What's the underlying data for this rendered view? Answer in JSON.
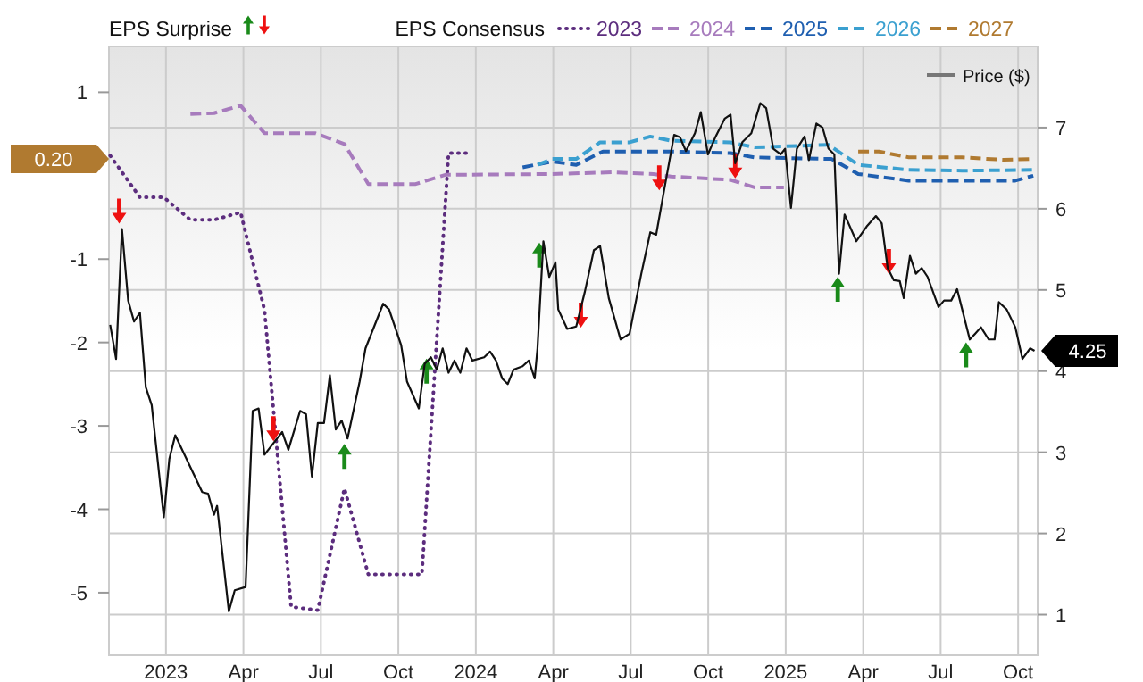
{
  "chart_data": {
    "type": "line",
    "legend_title": "EPS Consensus",
    "annotations": [
      "EPS Surprise",
      "0.20",
      "4.25"
    ],
    "xlim": [
      2022.816,
      2025.813
    ],
    "xticks": [
      2023,
      {
        "value": 2023.25,
        "label": "Apr"
      },
      {
        "value": 2023.5,
        "label": "Jul"
      },
      {
        "value": 2023.75,
        "label": "Oct"
      },
      2024,
      {
        "value": 2024.25,
        "label": "Apr"
      },
      {
        "value": 2024.5,
        "label": "Jul"
      },
      {
        "value": 2024.75,
        "label": "Oct"
      },
      2025,
      {
        "value": 2025.25,
        "label": "Apr"
      },
      {
        "value": 2025.5,
        "label": "Jul"
      },
      {
        "value": 2025.75,
        "label": "Oct"
      }
    ],
    "ylim": [
      -5.75,
      1.55
    ],
    "yticks": [
      1,
      -1,
      -2,
      -3,
      -4,
      -5
    ],
    "y2lim": [
      0.5,
      8.0
    ],
    "y2ticks": [
      1,
      2,
      3,
      4,
      5,
      6,
      7
    ],
    "grid": true,
    "legend": "top",
    "series": [
      {
        "name": "2023",
        "color": "#5c2d7e",
        "line_style": "dotted",
        "x": [
          2022.82,
          2022.916,
          2022.993,
          2023.079,
          2023.155,
          2023.241,
          2023.318,
          2023.404,
          2023.49,
          2023.576,
          2023.653,
          2023.826,
          2023.912,
          2023.979
        ],
        "values": [
          0.24,
          -0.26,
          -0.26,
          -0.53,
          -0.53,
          -0.44,
          -1.61,
          -5.17,
          -5.21,
          -3.75,
          -4.78,
          -4.78,
          0.27,
          0.27
        ]
      },
      {
        "name": "2024",
        "color": "#a77bbd",
        "line_style": "dashed",
        "x": [
          2023.079,
          2023.155,
          2023.241,
          2023.318,
          2023.481,
          2023.576,
          2023.653,
          2023.806,
          2023.902,
          2024.247,
          2024.439,
          2024.573,
          2024.63,
          2024.822,
          2024.899,
          2024.994
        ],
        "values": [
          0.74,
          0.75,
          0.84,
          0.51,
          0.51,
          0.38,
          -0.1,
          -0.1,
          0.01,
          0.02,
          0.04,
          0.02,
          -0.01,
          -0.05,
          -0.14,
          -0.14
        ]
      },
      {
        "name": "2025",
        "color": "#1f5fb0",
        "line_style": "dashed",
        "x": [
          2024.151,
          2024.247,
          2024.324,
          2024.41,
          2024.63,
          2024.822,
          2024.899,
          2025.148,
          2025.234,
          2025.397,
          2025.741,
          2025.799
        ],
        "values": [
          0.1,
          0.17,
          0.13,
          0.29,
          0.29,
          0.27,
          0.22,
          0.2,
          0.02,
          -0.06,
          -0.06,
          0.0
        ]
      },
      {
        "name": "2026",
        "color": "#3ba0d0",
        "line_style": "dashed",
        "x": [
          2024.199,
          2024.247,
          2024.324,
          2024.401,
          2024.496,
          2024.563,
          2024.63,
          2024.822,
          2024.899,
          2025.138,
          2025.234,
          2025.397,
          2025.569,
          2025.799
        ],
        "values": [
          0.13,
          0.2,
          0.2,
          0.4,
          0.4,
          0.47,
          0.42,
          0.4,
          0.34,
          0.37,
          0.13,
          0.07,
          0.06,
          0.07
        ]
      },
      {
        "name": "2027",
        "color": "#b07a30",
        "line_style": "dashed",
        "x": [
          2025.234,
          2025.301,
          2025.397,
          2025.569,
          2025.703,
          2025.799
        ],
        "values": [
          0.29,
          0.29,
          0.22,
          0.22,
          0.19,
          0.2
        ]
      },
      {
        "name": "Price ($)",
        "color": "#111111",
        "axis": "y2",
        "line_style": "solid",
        "x": [
          2022.82,
          2022.839,
          2022.858,
          2022.878,
          2022.897,
          2022.916,
          2022.935,
          2022.954,
          2022.993,
          2023.011,
          2023.03,
          2023.117,
          2023.136,
          2023.155,
          2023.165,
          2023.203,
          2023.222,
          2023.257,
          2023.28,
          2023.299,
          2023.318,
          2023.375,
          2023.395,
          2023.433,
          2023.452,
          2023.471,
          2023.49,
          2023.51,
          2023.529,
          2023.548,
          2023.567,
          2023.586,
          2023.625,
          2023.644,
          2023.701,
          2023.72,
          2023.759,
          2023.778,
          2023.816,
          2023.835,
          2023.855,
          2023.874,
          2023.893,
          2023.912,
          2023.931,
          2023.95,
          2023.97,
          2023.989,
          2024.027,
          2024.046,
          2024.065,
          2024.085,
          2024.103,
          2024.122,
          2024.151,
          2024.171,
          2024.19,
          2024.199,
          2024.218,
          2024.237,
          2024.257,
          2024.266,
          2024.295,
          2024.324,
          2024.352,
          2024.381,
          2024.401,
          2024.429,
          2024.467,
          2024.496,
          2024.534,
          2024.563,
          2024.582,
          2024.611,
          2024.64,
          2024.659,
          2024.678,
          2024.707,
          2024.726,
          2024.749,
          2024.774,
          2024.803,
          2024.822,
          2024.837,
          2024.86,
          2024.889,
          2024.918,
          2024.937,
          2024.96,
          2024.984,
          2024.998,
          2025.017,
          2025.036,
          2025.061,
          2025.075,
          2025.099,
          2025.119,
          2025.138,
          2025.157,
          2025.172,
          2025.19,
          2025.228,
          2025.263,
          2025.291,
          2025.31,
          2025.329,
          2025.349,
          2025.368,
          2025.381,
          2025.401,
          2025.42,
          2025.439,
          2025.458,
          2025.493,
          2025.511,
          2025.534,
          2025.553,
          2025.594,
          2025.611,
          2025.63,
          2025.655,
          2025.674,
          2025.688,
          2025.713,
          2025.741,
          2025.764,
          2025.789,
          2025.803
        ],
        "values": [
          4.57,
          4.15,
          5.75,
          4.87,
          4.61,
          4.72,
          3.8,
          3.58,
          2.2,
          2.92,
          3.21,
          2.51,
          2.49,
          2.23,
          2.34,
          1.04,
          1.3,
          1.34,
          3.51,
          3.54,
          2.97,
          3.25,
          3.03,
          3.51,
          3.47,
          2.7,
          3.36,
          3.36,
          3.95,
          3.28,
          3.39,
          3.17,
          3.87,
          4.28,
          4.83,
          4.76,
          4.32,
          3.87,
          3.54,
          4.09,
          4.17,
          4.02,
          4.28,
          3.98,
          4.13,
          3.98,
          4.28,
          4.13,
          4.17,
          4.24,
          4.13,
          3.91,
          3.84,
          4.02,
          4.06,
          4.13,
          3.91,
          4.28,
          5.6,
          5.16,
          5.34,
          4.76,
          4.52,
          4.55,
          4.98,
          5.49,
          5.54,
          4.9,
          4.39,
          4.46,
          5.2,
          5.71,
          5.68,
          6.3,
          6.91,
          6.88,
          6.71,
          6.93,
          7.19,
          6.67,
          6.89,
          7.11,
          7.16,
          6.56,
          6.82,
          6.93,
          7.3,
          7.24,
          6.74,
          6.67,
          6.74,
          6.01,
          6.74,
          6.89,
          6.6,
          7.05,
          7.0,
          6.74,
          6.67,
          5.2,
          5.93,
          5.6,
          5.79,
          5.91,
          5.82,
          5.27,
          5.12,
          5.11,
          4.9,
          5.42,
          5.2,
          5.27,
          5.16,
          4.79,
          4.87,
          4.87,
          5.01,
          4.39,
          4.46,
          4.54,
          4.39,
          4.39,
          4.85,
          4.76,
          4.54,
          4.15,
          4.28,
          4.25
        ]
      },
      {
        "type": "scatter",
        "color": "#1a8a1a",
        "axis": "y2",
        "x": [
          2023.576,
          2023.841,
          2024.205,
          2025.168,
          2025.582
        ],
        "values": [
          2.95,
          4.0,
          5.43,
          5.01,
          4.2
        ]
      },
      {
        "type": "scatter",
        "color": "#ee1111",
        "axis": "y2",
        "x": [
          2022.849,
          2023.347,
          2024.339,
          2024.592,
          2024.837,
          2025.333
        ],
        "values": [
          5.97,
          3.29,
          4.69,
          6.38,
          6.53,
          5.35
        ]
      }
    ]
  }
}
